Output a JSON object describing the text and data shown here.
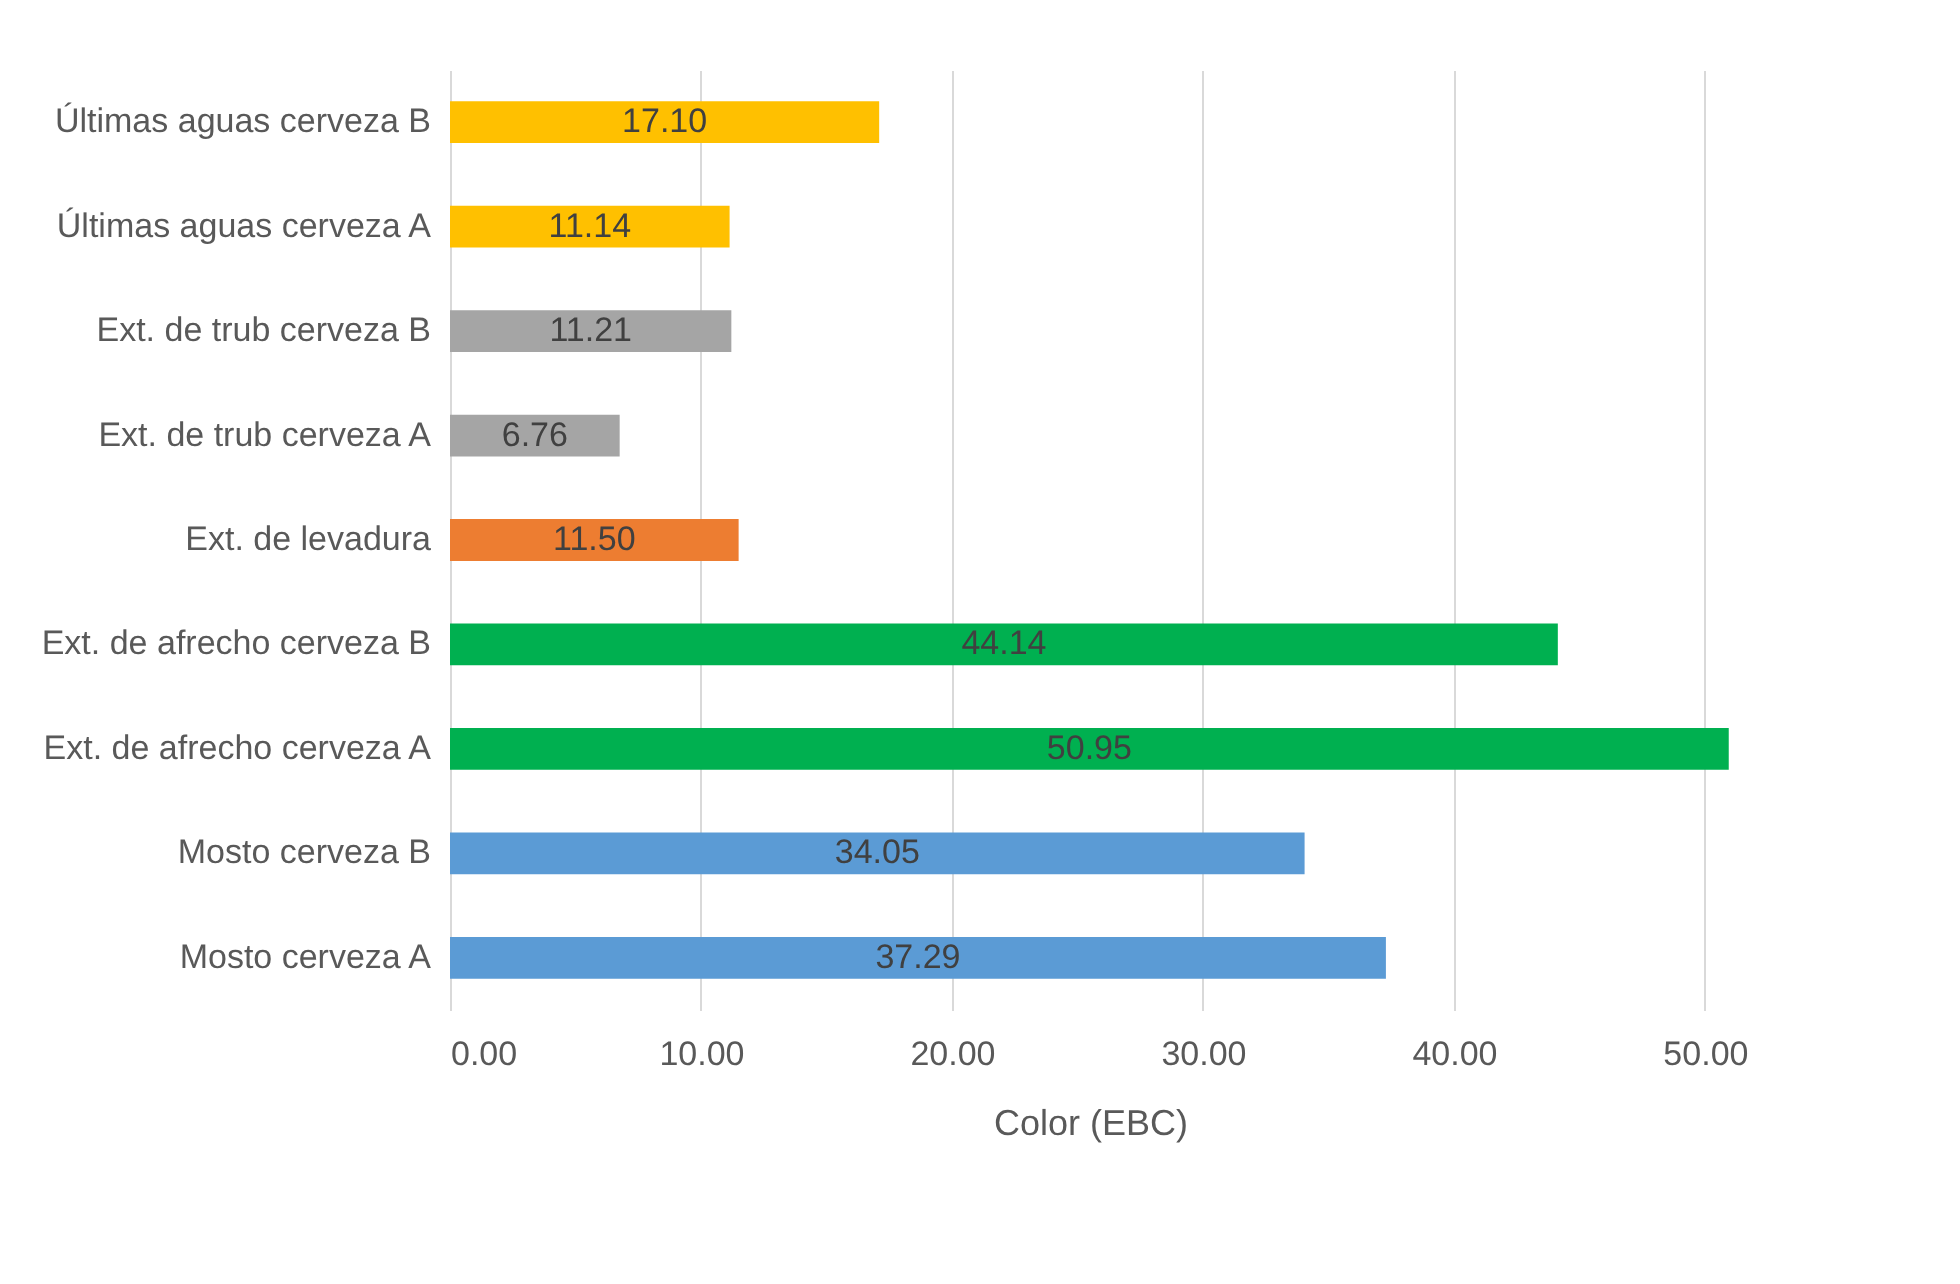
{
  "chart_data": {
    "type": "bar",
    "orientation": "horizontal",
    "xlabel": "Color (EBC)",
    "categories": [
      "Últimas aguas cerveza B",
      "Últimas aguas cerveza A",
      "Ext. de trub cerveza B",
      "Ext. de trub cerveza A",
      "Ext. de levadura",
      "Ext. de afrecho cerveza B",
      "Ext. de afrecho cerveza A",
      "Mosto cerveza B",
      "Mosto cerveza A"
    ],
    "values": [
      17.1,
      11.14,
      11.21,
      6.76,
      11.5,
      44.14,
      50.95,
      34.05,
      37.29
    ],
    "colors": [
      "#ffc000",
      "#ffc000",
      "#a5a5a5",
      "#a5a5a5",
      "#ed7d31",
      "#00b050",
      "#00b050",
      "#5b9bd5",
      "#5b9bd5"
    ],
    "xlim": [
      0,
      51
    ],
    "xticks": [
      {
        "value": 0,
        "label": "0.00"
      },
      {
        "value": 10,
        "label": "10.00"
      },
      {
        "value": 20,
        "label": "20.00"
      },
      {
        "value": 30,
        "label": "30.00"
      },
      {
        "value": 40,
        "label": "40.00"
      },
      {
        "value": 50,
        "label": "50.00"
      }
    ],
    "value_labels": [
      "17.10",
      "11.14",
      "11.21",
      "6.76",
      "11.50",
      "44.14",
      "50.95",
      "34.05",
      "37.29"
    ],
    "grid": "x"
  }
}
